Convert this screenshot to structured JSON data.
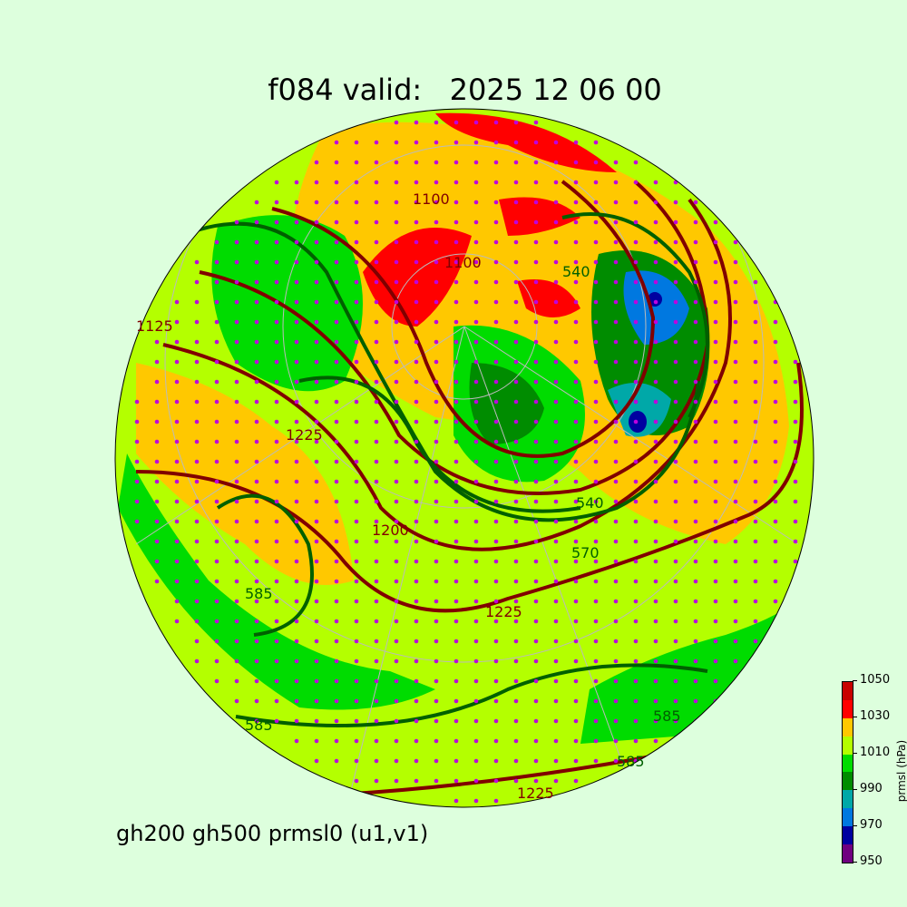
{
  "title": "f084 valid:   2025 12 06 00",
  "subtitle": "gh200 gh500 prmsl0 (u1,v1)",
  "colorbar": {
    "label": "prmsl (hPa)",
    "ticks": [
      "950",
      "970",
      "990",
      "1010",
      "1030",
      "1050"
    ],
    "levels": [
      950,
      960,
      970,
      980,
      990,
      1000,
      1010,
      1020,
      1030,
      1040,
      1050
    ],
    "colors": [
      "#700080",
      "#0000a0",
      "#0078e0",
      "#00a8a8",
      "#008c00",
      "#00dc00",
      "#b4ff00",
      "#ffc800",
      "#ff0000",
      "#c80000"
    ]
  },
  "contour_labels": {
    "gh200": [
      "1100",
      "1100",
      "1125",
      "1225",
      "1200",
      "1225",
      "1225"
    ],
    "gh500": [
      "540",
      "540",
      "570",
      "585",
      "585",
      "585",
      "585"
    ]
  },
  "contour_colors": {
    "gh200": "#800000",
    "gh500": "#006000",
    "wind_barbs": "#000000",
    "points": "#c000e0"
  }
}
